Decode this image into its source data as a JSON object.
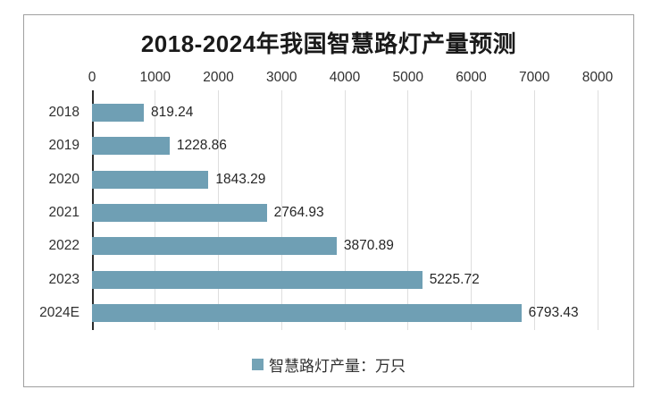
{
  "chart_data": {
    "type": "bar",
    "orientation": "horizontal",
    "title": "2018-2024年我国智慧路灯产量预测",
    "categories": [
      "2018",
      "2019",
      "2020",
      "2021",
      "2022",
      "2023",
      "2024E"
    ],
    "series": [
      {
        "name": "智慧路灯产量：万只",
        "values": [
          819.24,
          1228.86,
          1843.29,
          2764.93,
          3870.89,
          5225.72,
          6793.43
        ]
      }
    ],
    "value_labels": [
      "819.24",
      "1228.86",
      "1843.29",
      "2764.93",
      "3870.89",
      "5225.72",
      "6793.43"
    ],
    "xlim": [
      0,
      8000
    ],
    "x_ticks": [
      "0",
      "1000",
      "2000",
      "3000",
      "4000",
      "5000",
      "6000",
      "7000",
      "8000"
    ],
    "grid": true,
    "value_axis_position": "top",
    "legend": {
      "label": "智慧路灯产量：万只",
      "position": "bottom"
    },
    "colors": {
      "bar": "#6f9fb4",
      "legend_marker": "#74a3b6",
      "gridline": "#dedede",
      "axis_line": "#2b2b2b",
      "frame_border": "#a0a0a0",
      "text": "#303030",
      "title_text": "#1a1a1a"
    }
  }
}
